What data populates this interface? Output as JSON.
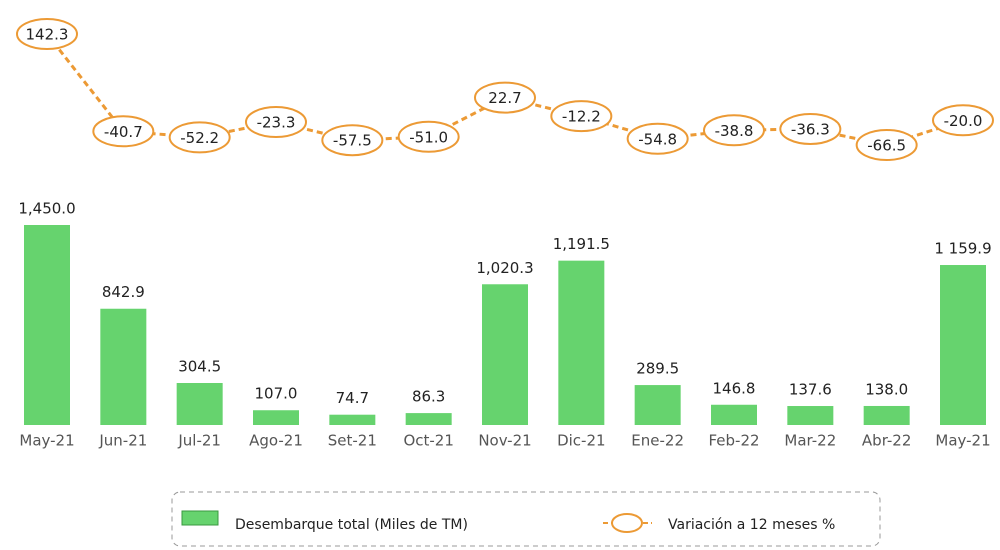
{
  "chart_data": {
    "type": "bar_line",
    "categories": [
      "May-21",
      "Jun-21",
      "Jul-21",
      "Ago-21",
      "Set-21",
      "Oct-21",
      "Nov-21",
      "Dic-21",
      "Ene-22",
      "Feb-22",
      "Mar-22",
      "Abr-22",
      "May-21"
    ],
    "series": [
      {
        "name": "Desembarque total (Miles de TM)",
        "type": "bar",
        "color": "#66d36e",
        "values": [
          1450.0,
          842.9,
          304.5,
          107.0,
          74.7,
          86.3,
          1020.3,
          1191.5,
          289.5,
          146.8,
          137.6,
          138.0,
          1159.9
        ],
        "value_labels": [
          "1,450.0",
          "842.9",
          "304.5",
          "107.0",
          "74.7",
          "86.3",
          "1,020.3",
          "1,191.5",
          "289.5",
          "146.8",
          "137.6",
          "138.0",
          "1 159.9"
        ]
      },
      {
        "name": "Variación a 12 meses %",
        "type": "line",
        "color": "#ec9a35",
        "values": [
          142.3,
          -40.7,
          -52.2,
          -23.3,
          -57.5,
          -51.0,
          22.7,
          -12.2,
          -54.8,
          -38.8,
          -36.3,
          -66.5,
          -20.0
        ],
        "value_labels": [
          "142.3",
          "-40.7",
          "-52.2",
          "-23.3",
          "-57.5",
          "-51.0",
          "22.7",
          "-12.2",
          "-54.8",
          "-38.8",
          "-36.3",
          "-66.5",
          "-20.0"
        ]
      }
    ],
    "legend": "bottom"
  }
}
